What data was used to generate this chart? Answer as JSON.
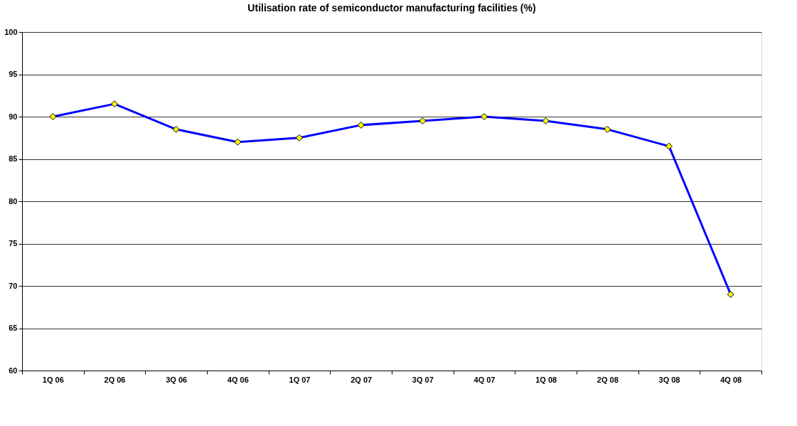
{
  "chart_data": {
    "type": "line",
    "title": "Utilisation rate of semiconductor manufacturing facilities (%)",
    "categories": [
      "1Q 06",
      "2Q 06",
      "3Q 06",
      "4Q 06",
      "1Q 07",
      "2Q 07",
      "3Q 07",
      "4Q 07",
      "1Q 08",
      "2Q 08",
      "3Q 08",
      "4Q 08"
    ],
    "series": [
      {
        "color": "#0000ff",
        "values": [
          90,
          91.5,
          88.5,
          87,
          87.5,
          89,
          89.5,
          90,
          89.5,
          88.5,
          86.5,
          69
        ]
      }
    ],
    "ylim": [
      60,
      100
    ],
    "yticks": [
      60,
      65,
      70,
      75,
      80,
      85,
      90,
      95,
      100
    ],
    "grid": "y",
    "marker": "diamond",
    "line_style": "solid",
    "legend": false
  }
}
